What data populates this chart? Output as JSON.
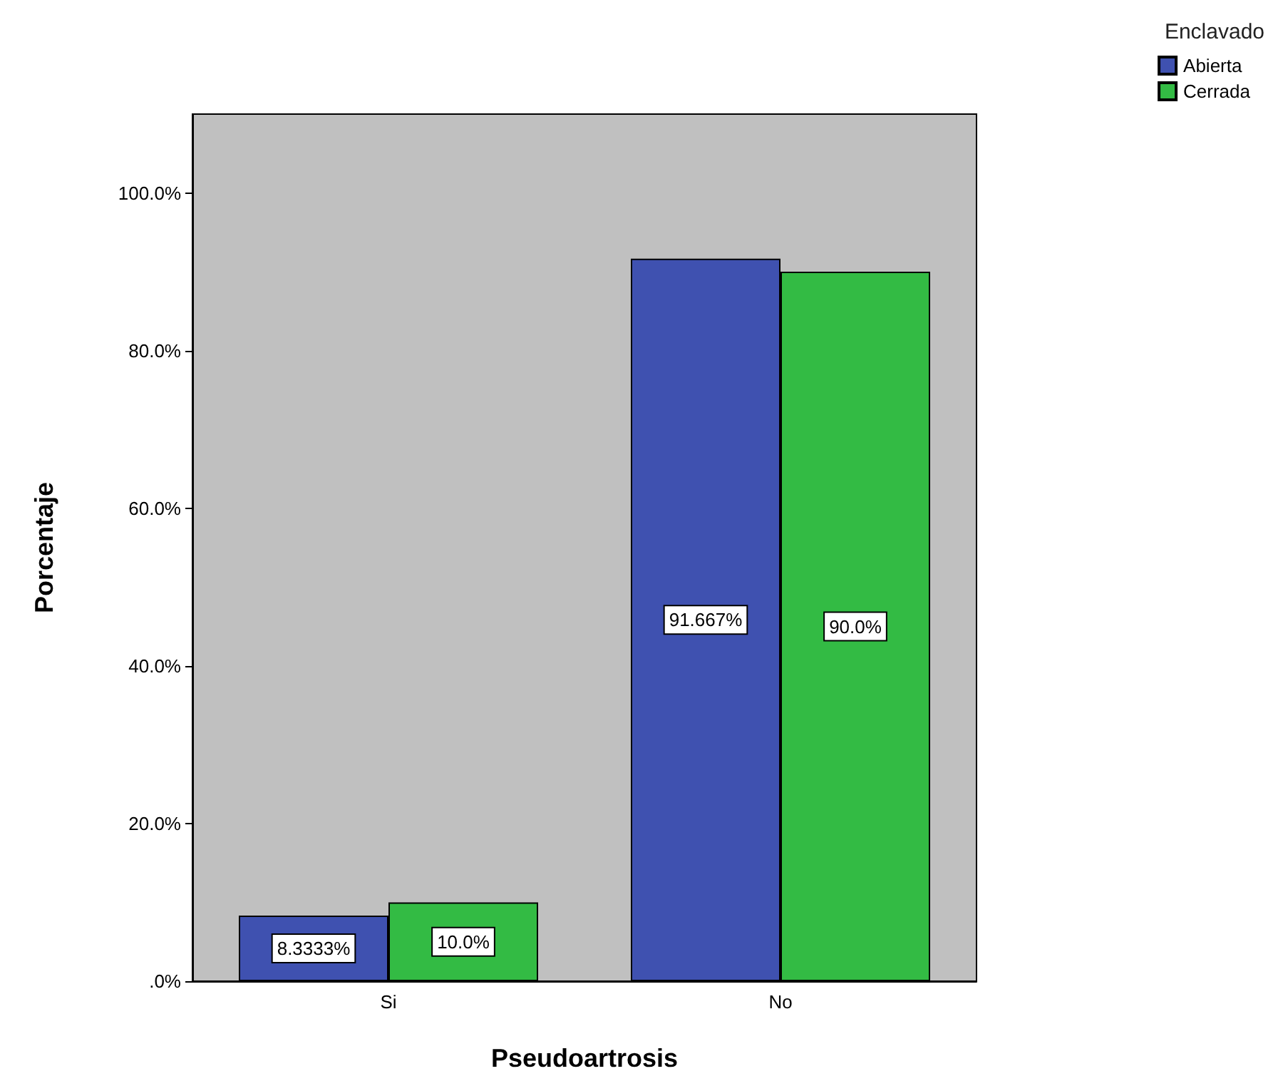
{
  "chart_data": {
    "type": "bar",
    "xlabel": "Pseudoartrosis",
    "ylabel": "Porcentaje",
    "legend_title": "Enclavado",
    "categories": [
      "Si",
      "No"
    ],
    "series": [
      {
        "name": "Abierta",
        "color": "#3f51b0",
        "values": [
          8.3333,
          91.667
        ],
        "value_labels": [
          "8.3333%",
          "91.667%"
        ]
      },
      {
        "name": "Cerrada",
        "color": "#33bb44",
        "values": [
          10.0,
          90.0
        ],
        "value_labels": [
          "10.0%",
          "90.0%"
        ]
      }
    ],
    "ylim": [
      0,
      110
    ],
    "yticks": [
      {
        "value": 0,
        "label": ".0%"
      },
      {
        "value": 20,
        "label": "20.0%"
      },
      {
        "value": 40,
        "label": "40.0%"
      },
      {
        "value": 60,
        "label": "60.0%"
      },
      {
        "value": 80,
        "label": "80.0%"
      },
      {
        "value": 100,
        "label": "100.0%"
      }
    ],
    "grid": false,
    "legend": "top right"
  }
}
